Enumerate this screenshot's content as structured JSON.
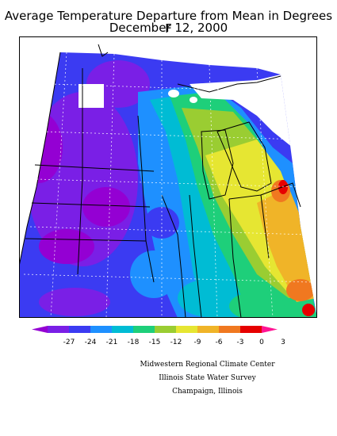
{
  "title": "Average Temperature Departure from Mean in Degrees F",
  "subtitle": "December 12, 2000",
  "legend": {
    "ticks": [
      "-27",
      "-24",
      "-21",
      "-18",
      "-15",
      "-12",
      "-9",
      "-6",
      "-3",
      "0",
      "3"
    ],
    "colors": [
      "#9400d3",
      "#7a1fe6",
      "#3b3bf2",
      "#1e90ff",
      "#00bcd4",
      "#1ecf7a",
      "#9acd32",
      "#e6e632",
      "#f0b428",
      "#f07820",
      "#e60000",
      "#ff1493"
    ]
  },
  "credits": {
    "line1": "Midwestern Regional Climate Center",
    "line2": "Illinois State Water Survey",
    "line3": "Champaign, Illinois"
  }
}
